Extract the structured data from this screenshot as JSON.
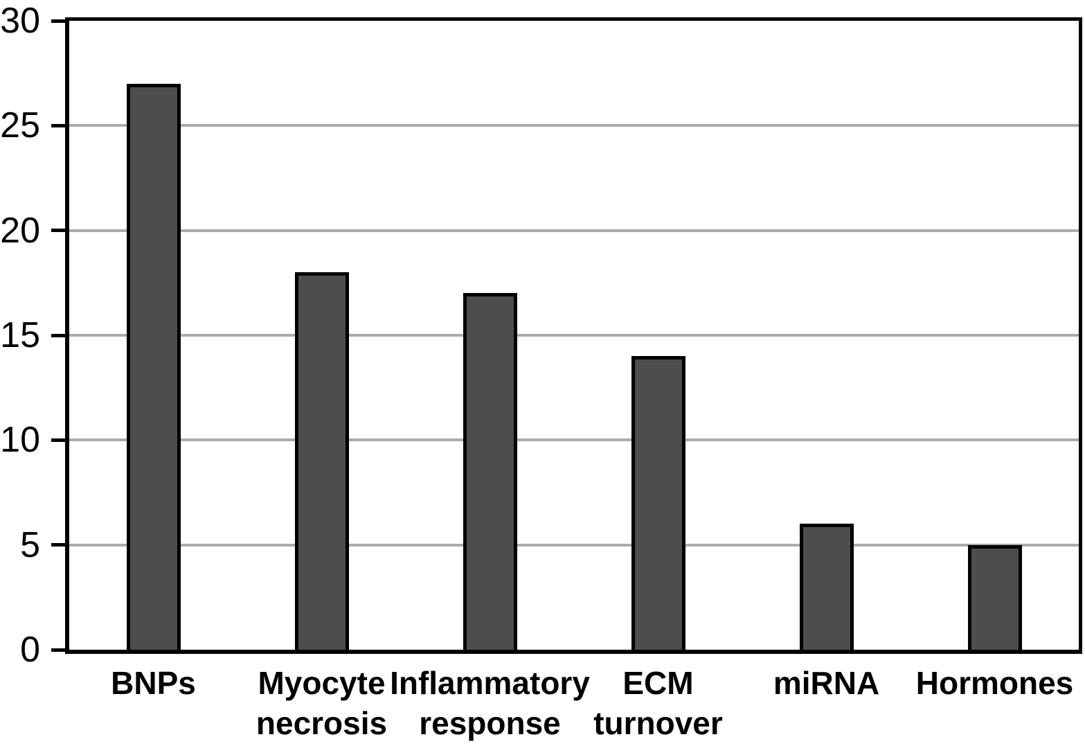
{
  "chart_data": {
    "type": "bar",
    "title": "",
    "xlabel": "",
    "ylabel": "",
    "categories": [
      "BNPs",
      "Myocyte\nnecrosis",
      "Inflammatory\nresponse",
      "ECM\nturnover",
      "miRNA",
      "Hormones"
    ],
    "values": [
      27,
      18,
      17,
      14,
      6,
      5
    ],
    "ylim": [
      0,
      30
    ],
    "yticks": [
      0,
      5,
      10,
      15,
      20,
      25,
      30
    ],
    "grid": true,
    "legend": "none",
    "colors": {
      "bar_fill": "#4d4d4d",
      "bar_border": "#000000",
      "gridline": "#ababab",
      "axis": "#000000",
      "background": "#ffffff"
    }
  }
}
